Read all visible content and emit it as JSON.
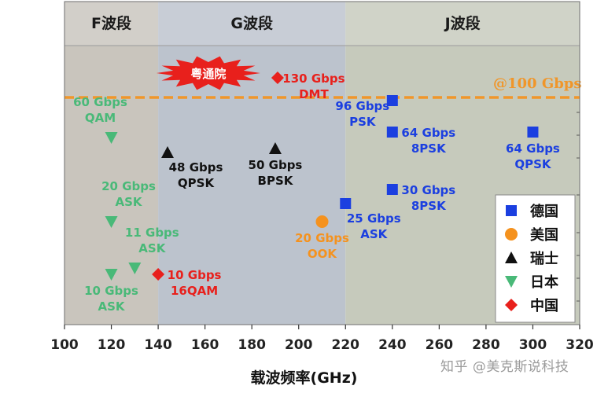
{
  "chart_data": {
    "type": "scatter",
    "title": "",
    "xlabel": "载波频率(GHz)",
    "ylabel": "",
    "xlim": [
      100,
      320
    ],
    "xticks": [
      100,
      120,
      140,
      160,
      180,
      200,
      220,
      240,
      260,
      280,
      300,
      320
    ],
    "ylim": [
      0,
      130
    ],
    "grid": false,
    "legend_position": "bottom-right",
    "bands": [
      {
        "name": "F波段",
        "from": 100,
        "to": 140,
        "color": "#c9c5bd"
      },
      {
        "name": "G波段",
        "from": 140,
        "to": 220,
        "color": "#bcc3cd"
      },
      {
        "name": "J波段",
        "from": 220,
        "to": 320,
        "color": "#c6cabc"
      }
    ],
    "reference_line": {
      "label": "@100 Gbps",
      "value": 100,
      "color": "#f0962a"
    },
    "callout": {
      "text": "粤通院",
      "color": "#e8201c"
    },
    "series": [
      {
        "name": "德国",
        "marker": "square",
        "color": "#1b3fe0",
        "points": [
          {
            "x": 240,
            "y": 96,
            "label": [
              "96 Gbps",
              "PSK"
            ],
            "side": "left"
          },
          {
            "x": 240,
            "y": 64,
            "label": [
              "64 Gbps",
              "8PSK"
            ],
            "side": "right"
          },
          {
            "x": 300,
            "y": 64,
            "label": [
              "64 Gbps",
              "QPSK"
            ],
            "side": "below"
          },
          {
            "x": 240,
            "y": 30,
            "label": [
              "30 Gbps",
              "8PSK"
            ],
            "side": "right"
          },
          {
            "x": 220,
            "y": 25,
            "label": [
              "25 Gbps",
              "ASK"
            ],
            "side": "below-right"
          }
        ]
      },
      {
        "name": "美国",
        "marker": "circle",
        "color": "#f5921e",
        "points": [
          {
            "x": 210,
            "y": 20,
            "label": [
              "20 Gbps",
              "OOK"
            ],
            "side": "below"
          }
        ]
      },
      {
        "name": "瑞士",
        "marker": "triangle-up",
        "color": "#111111",
        "points": [
          {
            "x": 144,
            "y": 48,
            "label": [
              "48 Gbps",
              "QPSK"
            ],
            "side": "below-right"
          },
          {
            "x": 190,
            "y": 50,
            "label": [
              "50 Gbps",
              "BPSK"
            ],
            "side": "below"
          }
        ]
      },
      {
        "name": "日本",
        "marker": "triangle-down",
        "color": "#49b978",
        "points": [
          {
            "x": 120,
            "y": 60,
            "label": [
              "60 Gbps",
              "QAM"
            ],
            "side": "above"
          },
          {
            "x": 120,
            "y": 20,
            "label": [
              "20 Gbps",
              "ASK"
            ],
            "side": "above-right"
          },
          {
            "x": 130,
            "y": 11,
            "label": [
              "11 Gbps",
              "ASK"
            ],
            "side": "above-right"
          },
          {
            "x": 120,
            "y": 10,
            "label": [
              "10 Gbps",
              "ASK"
            ],
            "side": "below"
          }
        ]
      },
      {
        "name": "中国",
        "marker": "diamond",
        "color": "#e8201c",
        "points": [
          {
            "x": 140,
            "y": 10,
            "label": [
              "10 Gbps",
              "16QAM"
            ],
            "side": "right"
          },
          {
            "x": 191,
            "y": 130,
            "label": [
              "130 Gbps",
              "DMT"
            ],
            "side": "right"
          }
        ]
      }
    ]
  },
  "watermark": "知乎 @美克斯说科技",
  "xaxis_title": "载波频率(GHz)"
}
